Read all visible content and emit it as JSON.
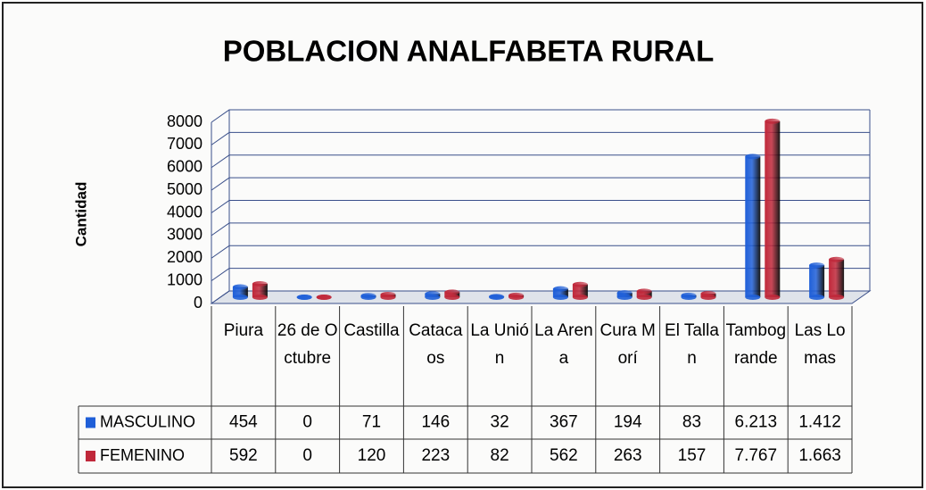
{
  "chart_data": {
    "type": "bar",
    "title": "POBLACION ANALFABETA  RURAL",
    "y_label": "Cantidad",
    "categories": [
      "Piura",
      "26 de Octubre",
      "Castilla",
      "Catacaos",
      "La Unión",
      "La Arena",
      "Cura Morí",
      "El Tallan",
      "Tambogrande",
      "Las Lomas"
    ],
    "series": [
      {
        "name": "MASCULINO",
        "color": "#1f5fd8",
        "values": [
          454,
          0,
          71,
          146,
          32,
          367,
          194,
          83,
          6213,
          1412
        ],
        "value_labels": [
          "454",
          "0",
          "71",
          "146",
          "32",
          "367",
          "194",
          "83",
          "6.213",
          "1.412"
        ]
      },
      {
        "name": "FEMENINO",
        "color": "#c0283a",
        "values": [
          592,
          0,
          120,
          223,
          82,
          562,
          263,
          157,
          7767,
          1663
        ],
        "value_labels": [
          "592",
          "0",
          "120",
          "223",
          "82",
          "562",
          "263",
          "157",
          "7.767",
          "1.663"
        ]
      }
    ],
    "ylim": [
      0,
      8000
    ],
    "yticks": [
      0,
      1000,
      2000,
      3000,
      4000,
      5000,
      6000,
      7000,
      8000
    ],
    "grid": true
  }
}
